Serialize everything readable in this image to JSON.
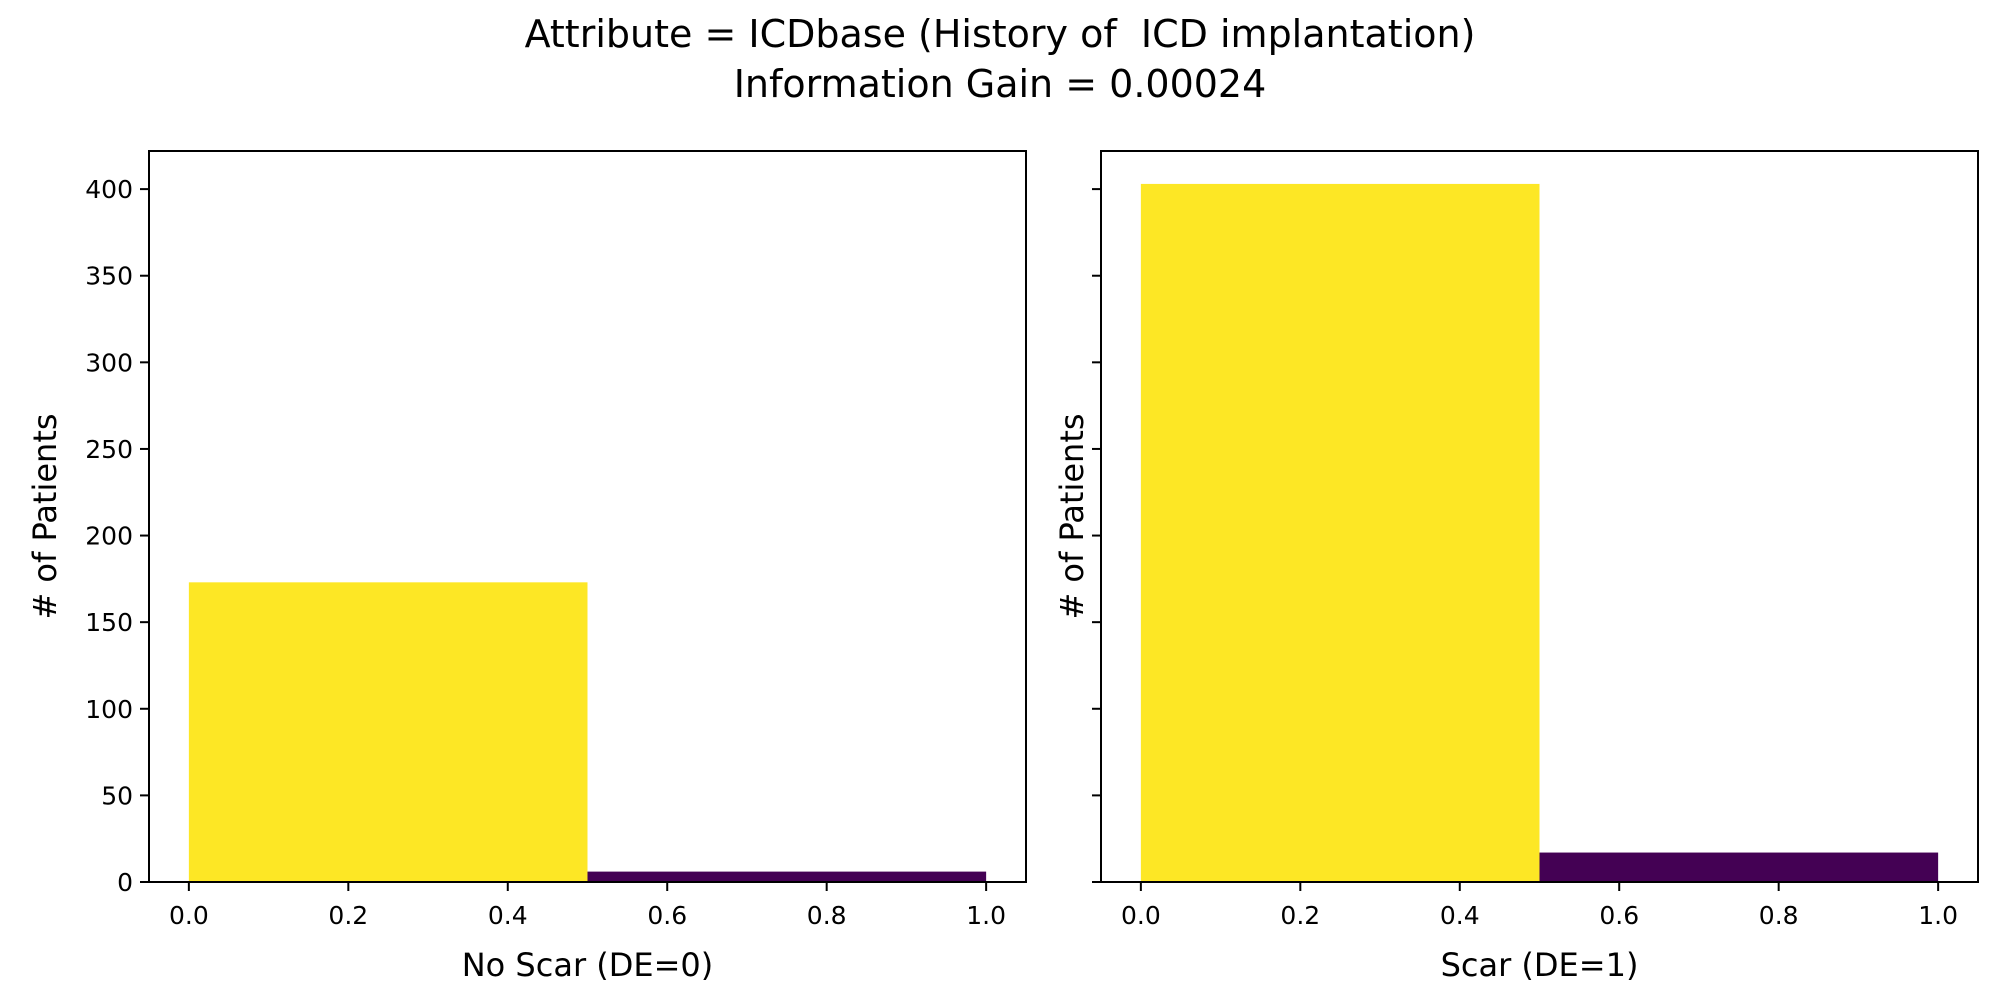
{
  "figure": {
    "title_line1": "Attribute = ICDbase (History of  ICD implantation)",
    "title_line2": "Information Gain = 0.00024"
  },
  "colors": {
    "class_0": "#fde725",
    "class_1": "#440154",
    "axes": "#000000",
    "background": "#ffffff"
  },
  "chart_data": [
    {
      "type": "bar",
      "xlabel": "No Scar (DE=0)",
      "ylabel": "# of Patients",
      "xlim": [
        -0.05,
        1.05
      ],
      "ylim": [
        0,
        422
      ],
      "xticks": [
        0.0,
        0.2,
        0.4,
        0.6,
        0.8,
        1.0
      ],
      "xtick_labels": [
        "0.0",
        "0.2",
        "0.4",
        "0.6",
        "0.8",
        "1.0"
      ],
      "yticks": [
        0,
        50,
        100,
        150,
        200,
        250,
        300,
        350,
        400
      ],
      "ytick_labels": [
        "0",
        "50",
        "100",
        "150",
        "200",
        "250",
        "300",
        "350",
        "400"
      ],
      "show_ytick_labels": true,
      "grid": false,
      "bins": [
        {
          "x0": 0.0,
          "x1": 0.5,
          "value": 173,
          "color_key": "class_0"
        },
        {
          "x0": 0.5,
          "x1": 1.0,
          "value": 6,
          "color_key": "class_1"
        }
      ]
    },
    {
      "type": "bar",
      "xlabel": "Scar (DE=1)",
      "ylabel": "# of Patients",
      "xlim": [
        -0.05,
        1.05
      ],
      "ylim": [
        0,
        422
      ],
      "xticks": [
        0.0,
        0.2,
        0.4,
        0.6,
        0.8,
        1.0
      ],
      "xtick_labels": [
        "0.0",
        "0.2",
        "0.4",
        "0.6",
        "0.8",
        "1.0"
      ],
      "yticks": [
        0,
        50,
        100,
        150,
        200,
        250,
        300,
        350,
        400
      ],
      "ytick_labels": [
        "0",
        "50",
        "100",
        "150",
        "200",
        "250",
        "300",
        "350",
        "400"
      ],
      "show_ytick_labels": false,
      "grid": false,
      "bins": [
        {
          "x0": 0.0,
          "x1": 0.5,
          "value": 403,
          "color_key": "class_0"
        },
        {
          "x0": 0.5,
          "x1": 1.0,
          "value": 17,
          "color_key": "class_1"
        }
      ]
    }
  ]
}
